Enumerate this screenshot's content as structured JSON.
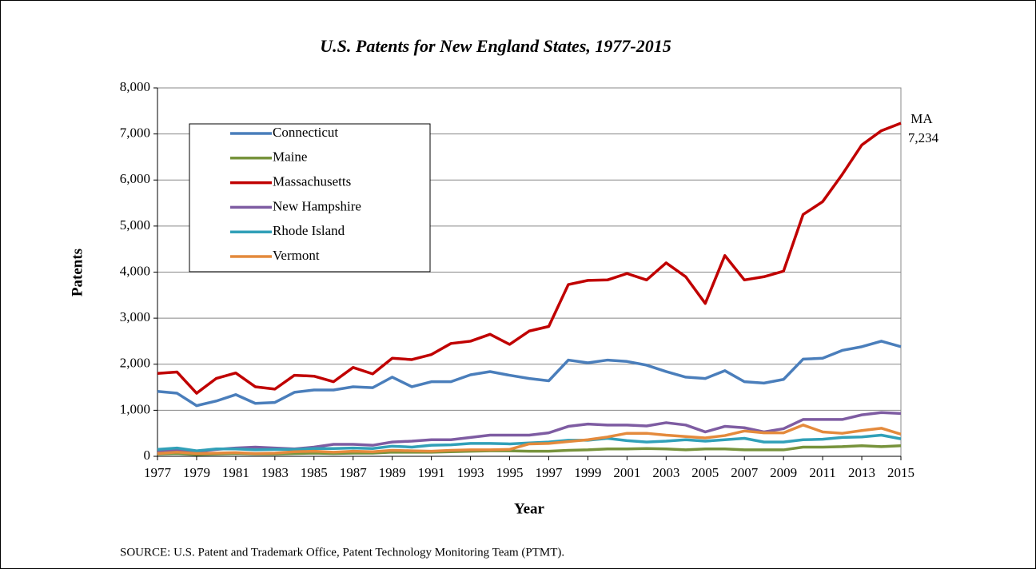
{
  "chart_data": {
    "type": "line",
    "title": "U.S. Patents for New England States, 1977-2015",
    "xlabel": "Year",
    "ylabel": "Patents",
    "source": "SOURCE: U.S. Patent and Trademark Office, Patent Technology Monitoring Team (PTMT).",
    "annotations": [
      "MA",
      "7,234"
    ],
    "x": [
      1977,
      1978,
      1979,
      1980,
      1981,
      1982,
      1983,
      1984,
      1985,
      1986,
      1987,
      1988,
      1989,
      1990,
      1991,
      1992,
      1993,
      1994,
      1995,
      1996,
      1997,
      1998,
      1999,
      2000,
      2001,
      2002,
      2003,
      2004,
      2005,
      2006,
      2007,
      2008,
      2009,
      2010,
      2011,
      2012,
      2013,
      2014,
      2015
    ],
    "xlim": [
      1977,
      2015
    ],
    "xticks": [
      1977,
      1979,
      1981,
      1983,
      1985,
      1987,
      1989,
      1991,
      1993,
      1995,
      1997,
      1999,
      2001,
      2003,
      2005,
      2007,
      2009,
      2011,
      2013,
      2015
    ],
    "ylim": [
      0,
      8000
    ],
    "yticks": [
      0,
      {
        "value": 1000,
        "label": "1,000"
      },
      {
        "value": 2000,
        "label": "2,000"
      },
      {
        "value": 3000,
        "label": "3,000"
      },
      {
        "value": 4000,
        "label": "4,000"
      },
      {
        "value": 5000,
        "label": "5,000"
      },
      {
        "value": 6000,
        "label": "6,000"
      },
      {
        "value": 7000,
        "label": "7,000"
      },
      {
        "value": 8000,
        "label": "8,000"
      }
    ],
    "grid": true,
    "legend": "upper left",
    "series": [
      {
        "name": "Connecticut",
        "color": "#4a7ebb",
        "values": [
          1410,
          1370,
          1100,
          1200,
          1340,
          1150,
          1170,
          1390,
          1440,
          1440,
          1510,
          1490,
          1720,
          1510,
          1620,
          1620,
          1770,
          1840,
          1760,
          1690,
          1640,
          2090,
          2030,
          2090,
          2060,
          1980,
          1840,
          1720,
          1690,
          1860,
          1620,
          1590,
          1670,
          2110,
          2130,
          2300,
          2380,
          2500,
          2380
        ]
      },
      {
        "name": "Maine",
        "color": "#77933c",
        "values": [
          50,
          60,
          40,
          50,
          60,
          50,
          50,
          60,
          70,
          60,
          70,
          70,
          90,
          90,
          90,
          100,
          110,
          120,
          120,
          110,
          110,
          130,
          140,
          160,
          160,
          170,
          160,
          140,
          160,
          160,
          140,
          140,
          140,
          200,
          200,
          210,
          230,
          210,
          230
        ]
      },
      {
        "name": "Massachusetts",
        "color": "#c00000",
        "values": [
          1800,
          1830,
          1370,
          1690,
          1810,
          1510,
          1460,
          1760,
          1740,
          1620,
          1930,
          1790,
          2130,
          2100,
          2210,
          2450,
          2500,
          2650,
          2430,
          2720,
          2820,
          3730,
          3820,
          3830,
          3970,
          3830,
          4200,
          3900,
          3320,
          4360,
          3830,
          3900,
          4020,
          5250,
          5530,
          6120,
          6760,
          7070,
          7234
        ]
      },
      {
        "name": "New Hampshire",
        "color": "#7e5ca2",
        "values": [
          120,
          140,
          100,
          150,
          180,
          200,
          180,
          160,
          200,
          260,
          260,
          240,
          310,
          330,
          360,
          360,
          410,
          460,
          460,
          460,
          510,
          650,
          700,
          680,
          680,
          660,
          730,
          680,
          530,
          650,
          620,
          530,
          600,
          800,
          800,
          800,
          900,
          950,
          930
        ]
      },
      {
        "name": "Rhode Island",
        "color": "#31a0b8",
        "values": [
          150,
          180,
          120,
          160,
          160,
          140,
          150,
          150,
          170,
          170,
          180,
          170,
          220,
          200,
          240,
          250,
          280,
          280,
          270,
          290,
          310,
          350,
          350,
          390,
          340,
          310,
          330,
          360,
          330,
          360,
          390,
          310,
          310,
          360,
          370,
          410,
          420,
          460,
          380
        ]
      },
      {
        "name": "Vermont",
        "color": "#e48a3c",
        "values": [
          60,
          90,
          60,
          70,
          80,
          60,
          70,
          100,
          110,
          90,
          110,
          100,
          130,
          120,
          110,
          130,
          140,
          140,
          150,
          270,
          280,
          320,
          360,
          420,
          500,
          500,
          460,
          430,
          400,
          450,
          550,
          510,
          510,
          680,
          530,
          500,
          560,
          610,
          480
        ]
      }
    ]
  }
}
